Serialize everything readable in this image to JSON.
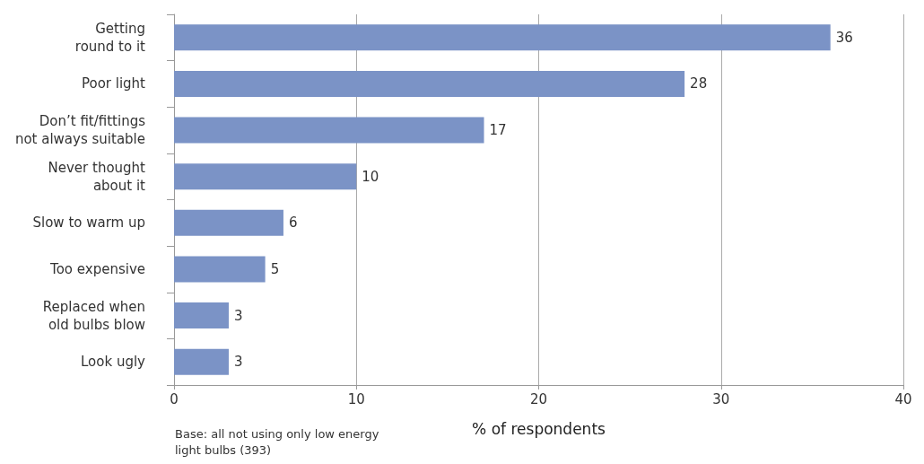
{
  "chart_data": {
    "type": "bar",
    "orientation": "horizontal",
    "categories": [
      "Getting\nround to it",
      "Poor light",
      "Don’t fit/fittings\nnot always suitable",
      "Never thought\nabout it",
      "Slow to warm up",
      "Too expensive",
      "Replaced when\nold bulbs blow",
      "Look ugly"
    ],
    "values": [
      36,
      28,
      17,
      10,
      6,
      5,
      3,
      3
    ],
    "color": "#7b93c6",
    "xlim": [
      0,
      40
    ],
    "xticks": [
      0,
      10,
      20,
      30,
      40
    ],
    "grid": "x",
    "data_labels": true,
    "xlabel": "% of respondents",
    "annotations": [
      "Base: all not using only low energy\nlight bulbs (393)"
    ]
  }
}
